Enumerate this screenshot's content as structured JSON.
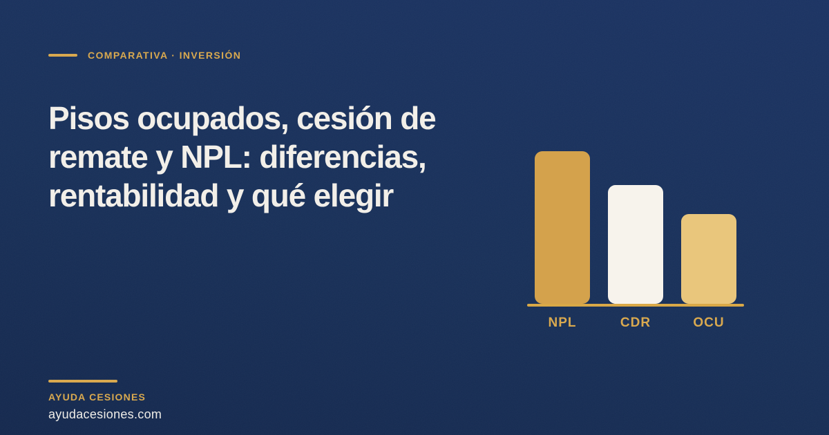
{
  "colors": {
    "background_top": "#1B3363",
    "background_bottom": "#14284E",
    "gold": "#D9A94F",
    "baseline": "#D9A847",
    "title_text": "#F2EFE9",
    "domain_text": "#EFEDE8"
  },
  "kicker": {
    "label": "COMPARATIVA · INVERSIÓN"
  },
  "title": {
    "text": "Pisos ocupados, cesión de\nremate y NPL: diferencias,\nrentabilidad y qué elegir"
  },
  "footer": {
    "brand": "AYUDA CESIONES",
    "domain": "ayudacesiones.com"
  },
  "chart_data": {
    "type": "bar",
    "categories": [
      "NPL",
      "CDR",
      "OCU"
    ],
    "values": [
      100,
      78,
      59
    ],
    "values_are_relative": true,
    "title": "",
    "xlabel": "",
    "ylabel": "",
    "ylim": [
      0,
      100
    ],
    "bar_colors": [
      "#D4A24C",
      "#F7F3EC",
      "#E9C67C"
    ],
    "grid": false,
    "legend_position": "none",
    "axis_line_color": "#D9A847"
  }
}
